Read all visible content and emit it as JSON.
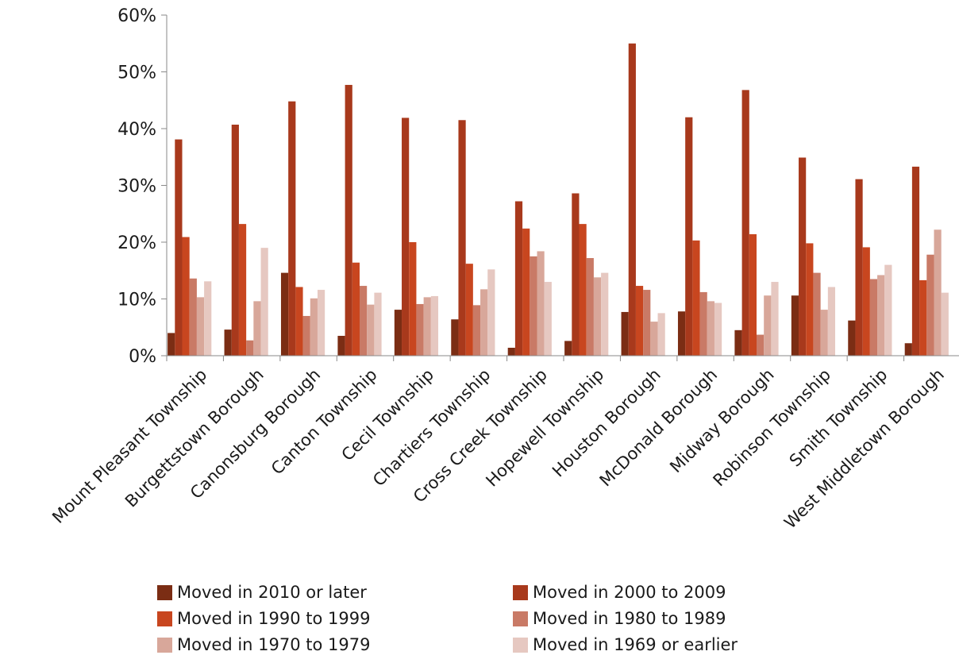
{
  "chart_data": {
    "type": "bar",
    "categories": [
      "Mount Pleasant Township",
      "Burgettstown Borough",
      "Canonsburg Borough",
      "Canton Township",
      "Cecil Township",
      "Chartiers Township",
      "Cross Creek Township",
      "Hopewell Township",
      "Houston Borough",
      "McDonald Borough",
      "Midway Borough",
      "Robinson Township",
      "Smith Township",
      "West Middletown Borough"
    ],
    "series": [
      {
        "name": "Moved in 2010 or later",
        "color": "#7b2d14",
        "values": [
          4.0,
          4.6,
          14.6,
          3.5,
          8.1,
          6.4,
          1.4,
          2.6,
          7.7,
          7.8,
          4.5,
          10.6,
          6.2,
          2.2
        ]
      },
      {
        "name": "Moved in 2000 to 2009",
        "color": "#a8391c",
        "values": [
          38.1,
          40.7,
          44.8,
          47.7,
          41.9,
          41.5,
          27.2,
          28.6,
          55.0,
          42.0,
          46.8,
          34.9,
          31.1,
          33.3
        ]
      },
      {
        "name": "Moved in 1990 to 1999",
        "color": "#c8461f",
        "values": [
          20.9,
          23.2,
          12.1,
          16.4,
          20.0,
          16.2,
          22.4,
          23.2,
          12.3,
          20.3,
          21.4,
          19.8,
          19.1,
          13.3
        ]
      },
      {
        "name": "Moved in 1980 to 1989",
        "color": "#c97a66",
        "values": [
          13.6,
          2.7,
          7.0,
          12.3,
          9.1,
          8.9,
          17.5,
          17.2,
          11.6,
          11.2,
          3.7,
          14.6,
          13.5,
          17.8
        ]
      },
      {
        "name": "Moved in 1970 to 1979",
        "color": "#d8a79a",
        "values": [
          10.3,
          9.6,
          10.1,
          9.0,
          10.3,
          11.7,
          18.4,
          13.8,
          6.0,
          9.6,
          10.6,
          8.1,
          14.2,
          22.2
        ]
      },
      {
        "name": "Moved in 1969 or earlier",
        "color": "#e6c8c1",
        "values": [
          13.1,
          19.0,
          11.6,
          11.1,
          10.5,
          15.2,
          13.0,
          14.6,
          7.5,
          9.3,
          13.0,
          12.1,
          16.0,
          11.1
        ]
      }
    ],
    "yticks": [
      "0%",
      "10%",
      "20%",
      "30%",
      "40%",
      "50%",
      "60%"
    ],
    "ylim": [
      0,
      60
    ],
    "grid": false,
    "legend_position": "bottom"
  }
}
